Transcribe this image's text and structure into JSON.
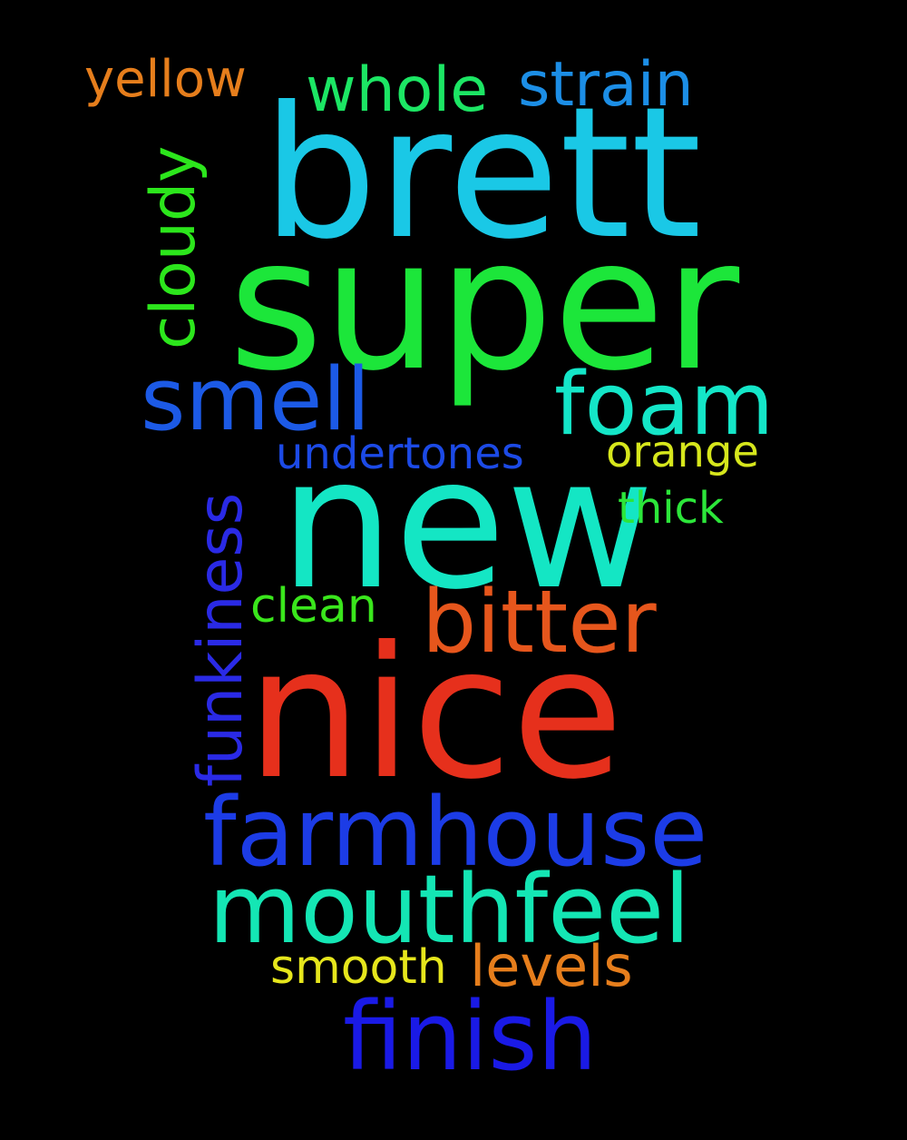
{
  "words": [
    {
      "text": "brett",
      "color": "#1ac8e6"
    },
    {
      "text": "super",
      "color": "#1ce63a"
    },
    {
      "text": "new",
      "color": "#14e6c4"
    },
    {
      "text": "nice",
      "color": "#e6301c"
    },
    {
      "text": "farmhouse",
      "color": "#1c3ce6"
    },
    {
      "text": "mouthfeel",
      "color": "#14e6b4"
    },
    {
      "text": "finish",
      "color": "#1a1ae6"
    },
    {
      "text": "smell",
      "color": "#1c5ae6"
    },
    {
      "text": "foam",
      "color": "#14e6c8"
    },
    {
      "text": "bitter",
      "color": "#e6561c"
    },
    {
      "text": "cloudy",
      "color": "#2ce61c"
    },
    {
      "text": "funkiness",
      "color": "#2a2ae6"
    },
    {
      "text": "yellow",
      "color": "#e67e1c"
    },
    {
      "text": "whole",
      "color": "#1ce664"
    },
    {
      "text": "strain",
      "color": "#1c8ee6"
    },
    {
      "text": "undertones",
      "color": "#1c4ae6"
    },
    {
      "text": "orange",
      "color": "#d6e61c"
    },
    {
      "text": "thick",
      "color": "#2ce63a"
    },
    {
      "text": "clean",
      "color": "#3ae61c"
    },
    {
      "text": "levels",
      "color": "#e67e1c"
    },
    {
      "text": "smooth",
      "color": "#e6e61c"
    }
  ]
}
